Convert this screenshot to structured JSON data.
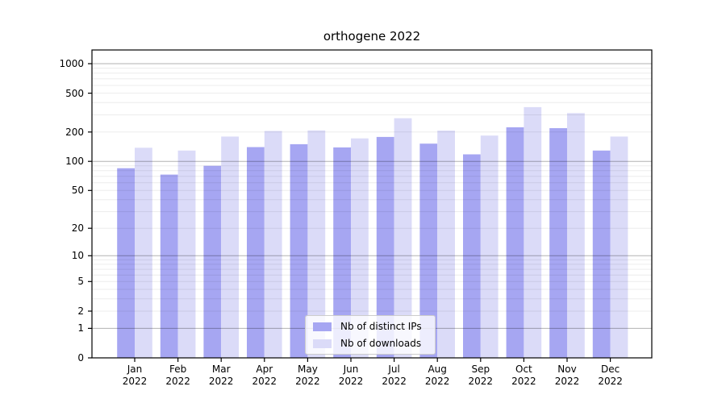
{
  "title": "orthogene 2022",
  "chart_data": {
    "type": "bar",
    "title": "orthogene 2022",
    "categories": [
      "Jan 2022",
      "Feb 2022",
      "Mar 2022",
      "Apr 2022",
      "May 2022",
      "Jun 2022",
      "Jul 2022",
      "Aug 2022",
      "Sep 2022",
      "Oct 2022",
      "Nov 2022",
      "Dec 2022"
    ],
    "series": [
      {
        "name": "Nb of distinct IPs",
        "color": "#a6a6f2",
        "values": [
          85,
          73,
          90,
          140,
          150,
          139,
          178,
          152,
          118,
          224,
          219,
          129
        ]
      },
      {
        "name": "Nb of downloads",
        "color": "#dbdbf8",
        "values": [
          138,
          129,
          180,
          205,
          208,
          172,
          277,
          207,
          184,
          360,
          313,
          180
        ]
      }
    ],
    "xlabel": "",
    "ylabel": "",
    "y_axis": {
      "scale": "log10(value+1)",
      "tick_values": [
        0,
        1,
        2,
        5,
        10,
        20,
        50,
        100,
        200,
        500,
        1000
      ],
      "ylim": [
        0,
        1380
      ],
      "grid": true
    },
    "legend_position": "lower center"
  },
  "colors": {
    "bar_distinct_ips": "#a6a6f2",
    "bar_downloads": "#dbdbf8",
    "grid_major": "rgba(0,0,0,0.30)",
    "grid_minor": "rgba(0,0,0,0.075)",
    "axis_spine": "#000000",
    "legend_border": "#cccccc",
    "legend_background": "rgba(255,255,255,0.8)",
    "text": "#000000"
  }
}
